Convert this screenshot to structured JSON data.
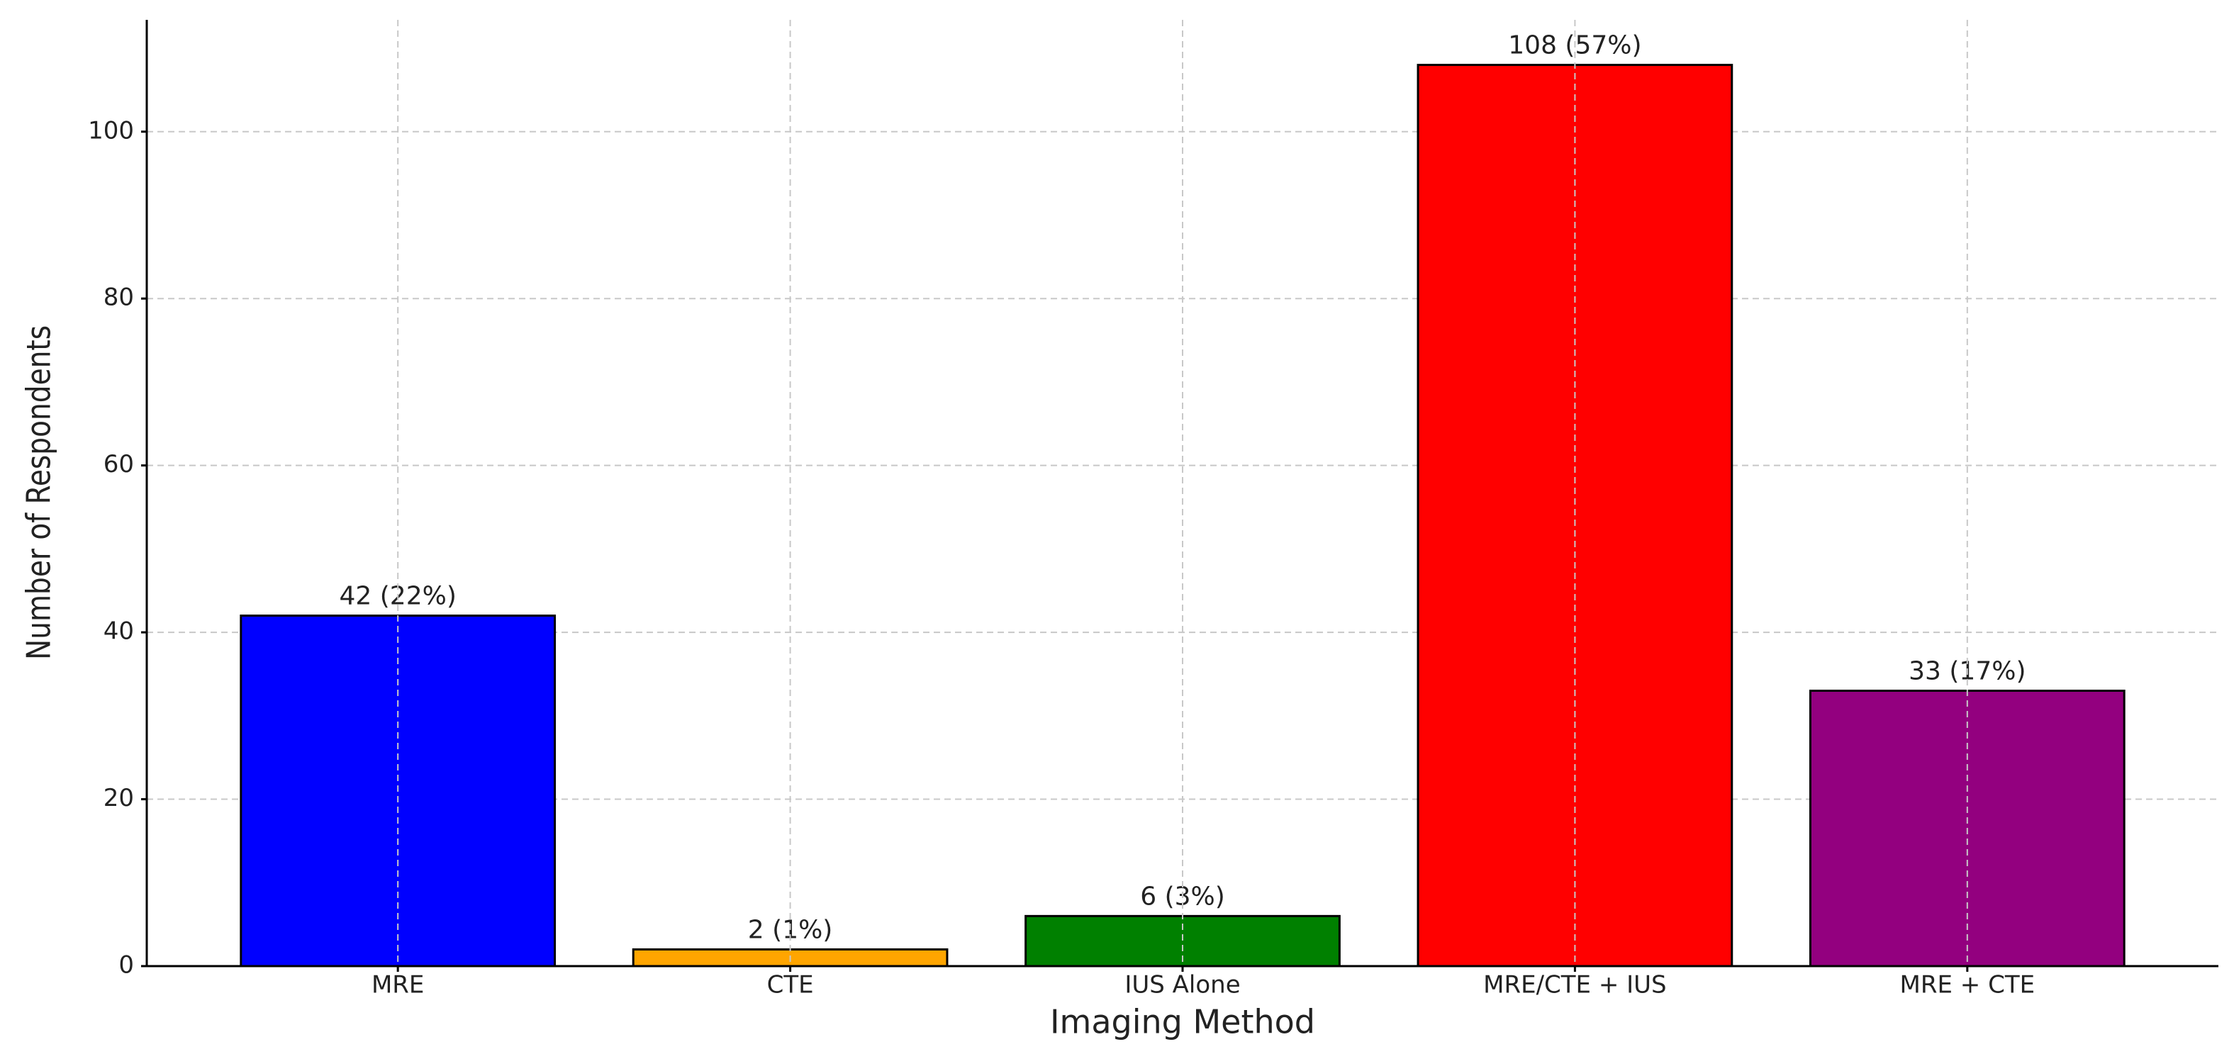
{
  "chart_data": {
    "type": "bar",
    "xlabel": "Imaging Method",
    "ylabel": "Number of Respondents",
    "categories": [
      "MRE",
      "CTE",
      "IUS Alone",
      "MRE/CTE + IUS",
      "MRE + CTE"
    ],
    "values": [
      42,
      2,
      6,
      108,
      33
    ],
    "value_labels": [
      "42 (22%)",
      "2 (1%)",
      "6 (3%)",
      "108 (57%)",
      "33 (17%)"
    ],
    "colors": [
      "#0000ff",
      "#ffa500",
      "#008000",
      "#ff0000",
      "#93007f"
    ],
    "ylim": [
      0,
      113.4
    ],
    "yticks": [
      0,
      20,
      40,
      60,
      80,
      100
    ],
    "grid": true
  }
}
